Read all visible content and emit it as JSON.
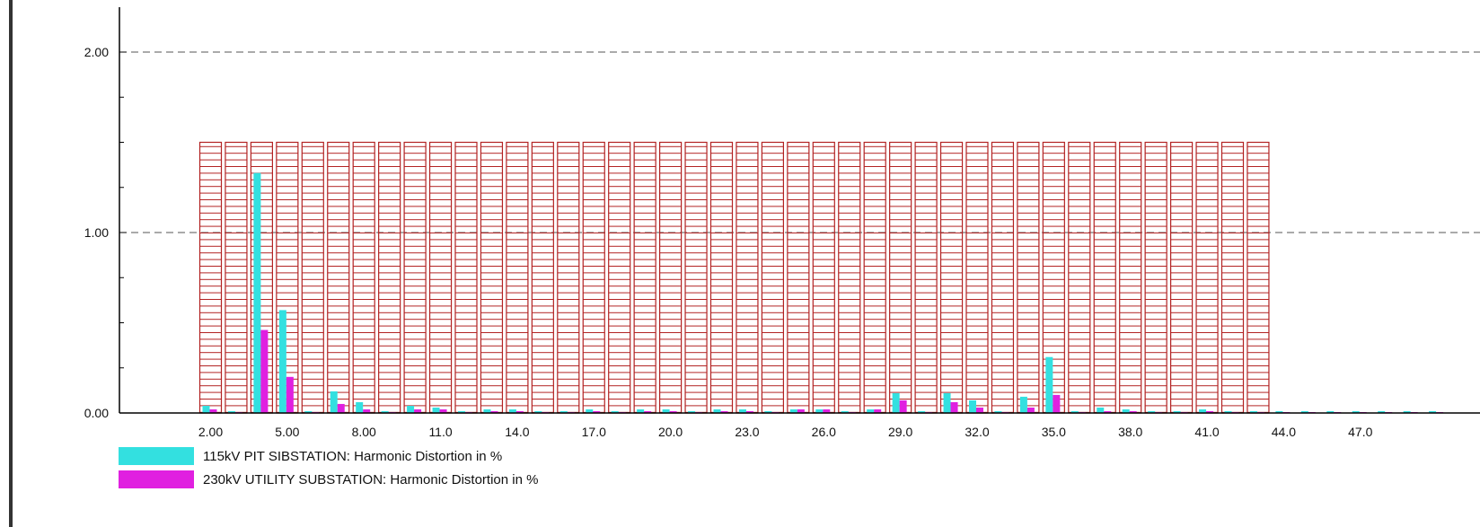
{
  "chart_data": {
    "type": "bar",
    "title": "",
    "xlabel": "",
    "ylabel": "",
    "ylim": [
      0,
      2.0
    ],
    "y_ticks": [
      "0.00",
      "1.00",
      "2.00"
    ],
    "x_ticks": [
      "2.00",
      "5.00",
      "8.00",
      "11.0",
      "14.0",
      "17.0",
      "20.0",
      "23.0",
      "26.0",
      "29.0",
      "32.0",
      "35.0",
      "38.0",
      "41.0",
      "44.0",
      "47.0"
    ],
    "grid": "dashed horizontal at y-ticks",
    "legend_position": "bottom-left",
    "limit": {
      "x_from": 2,
      "x_to": 43,
      "value": 1.5,
      "color": "#b22222",
      "pattern": "hatched"
    },
    "x": [
      2,
      3,
      4,
      5,
      6,
      7,
      8,
      9,
      10,
      11,
      12,
      13,
      14,
      15,
      16,
      17,
      18,
      19,
      20,
      21,
      22,
      23,
      24,
      25,
      26,
      27,
      28,
      29,
      30,
      31,
      32,
      33,
      34,
      35,
      36,
      37,
      38,
      39,
      40,
      41,
      42,
      43,
      44,
      45,
      46,
      47,
      48,
      49,
      50
    ],
    "series": [
      {
        "name": "115kV PIT SIBSTATION: Harmonic Distortion in %",
        "color": "#33e0e0",
        "values": [
          0.04,
          0.01,
          1.33,
          0.57,
          0.01,
          0.12,
          0.06,
          0.01,
          0.04,
          0.03,
          0.01,
          0.02,
          0.02,
          0.01,
          0.01,
          0.02,
          0.01,
          0.02,
          0.02,
          0.01,
          0.02,
          0.02,
          0.01,
          0.02,
          0.02,
          0.01,
          0.02,
          0.11,
          0.01,
          0.11,
          0.07,
          0.01,
          0.09,
          0.31,
          0.01,
          0.03,
          0.02,
          0.01,
          0.01,
          0.02,
          0.01,
          0.01,
          0.01,
          0.01,
          0.01,
          0.01,
          0.01,
          0.01,
          0.01
        ]
      },
      {
        "name": "230kV UTILITY SUBSTATION: Harmonic Distortion in %",
        "color": "#e020e0",
        "values": [
          0.02,
          0.005,
          0.46,
          0.2,
          0.005,
          0.05,
          0.02,
          0.005,
          0.02,
          0.02,
          0.005,
          0.01,
          0.01,
          0.005,
          0.005,
          0.01,
          0.005,
          0.01,
          0.01,
          0.005,
          0.01,
          0.01,
          0.005,
          0.02,
          0.02,
          0.005,
          0.02,
          0.07,
          0.005,
          0.06,
          0.03,
          0.005,
          0.03,
          0.1,
          0.005,
          0.01,
          0.01,
          0.005,
          0.005,
          0.01,
          0.005,
          0.005,
          0.005,
          0.005,
          0.005,
          0.005,
          0.005,
          0.005,
          0.005
        ]
      }
    ]
  },
  "legend": {
    "items": [
      {
        "label": "115kV PIT SIBSTATION: Harmonic Distortion in %",
        "color": "#33e0e0"
      },
      {
        "label": "230kV UTILITY SUBSTATION: Harmonic Distortion in %",
        "color": "#e020e0"
      }
    ]
  }
}
